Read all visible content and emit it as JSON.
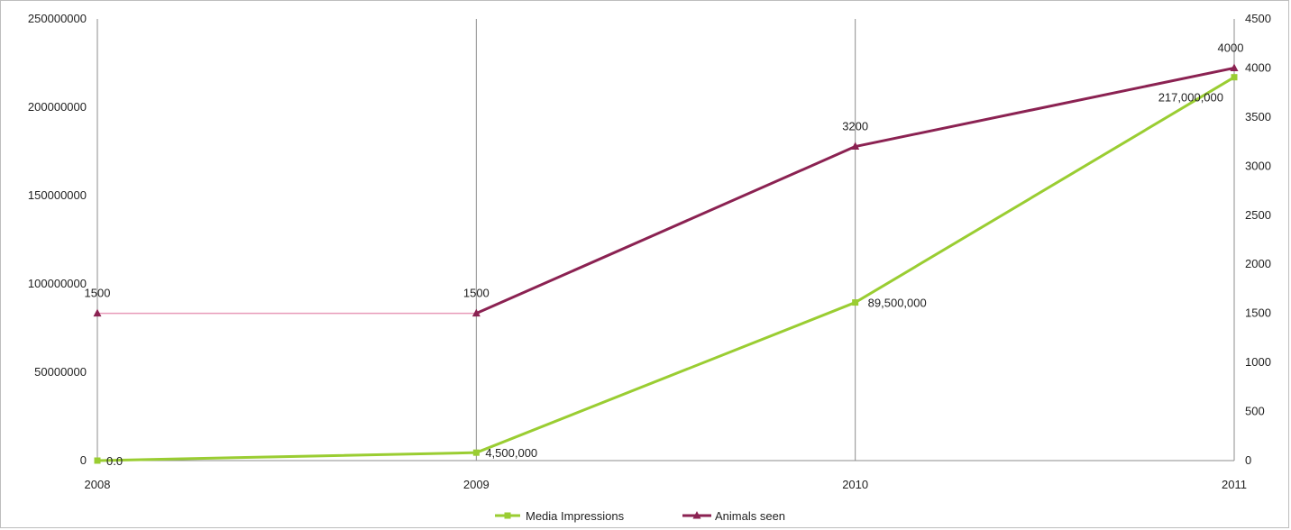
{
  "chart_data": {
    "type": "line",
    "x": [
      "2008",
      "2009",
      "2010",
      "2011"
    ],
    "y_left": {
      "ylim": [
        0,
        250000000
      ],
      "ticks": [
        "0",
        "50000000",
        "100000000",
        "150000000",
        "200000000",
        "250000000"
      ]
    },
    "y_right": {
      "ylim": [
        0,
        4500
      ],
      "ticks": [
        "0",
        "500",
        "1000",
        "1500",
        "2000",
        "2500",
        "3000",
        "3500",
        "4000",
        "4500"
      ]
    },
    "grid": "vertical",
    "legend_position": "bottom",
    "series": [
      {
        "name": "Media Impressions",
        "axis": "left",
        "color": "#9acd32",
        "values": [
          0,
          4500000,
          89500000,
          217000000
        ],
        "labels": [
          "0.0",
          "4,500,000",
          "89,500,000",
          "217,000,000"
        ]
      },
      {
        "name": "Animals seen",
        "axis": "right",
        "color": "#8b2252",
        "values": [
          1500,
          1500,
          3200,
          4000
        ],
        "labels": [
          "1500",
          "1500",
          "3200",
          "4000"
        ]
      }
    ]
  }
}
